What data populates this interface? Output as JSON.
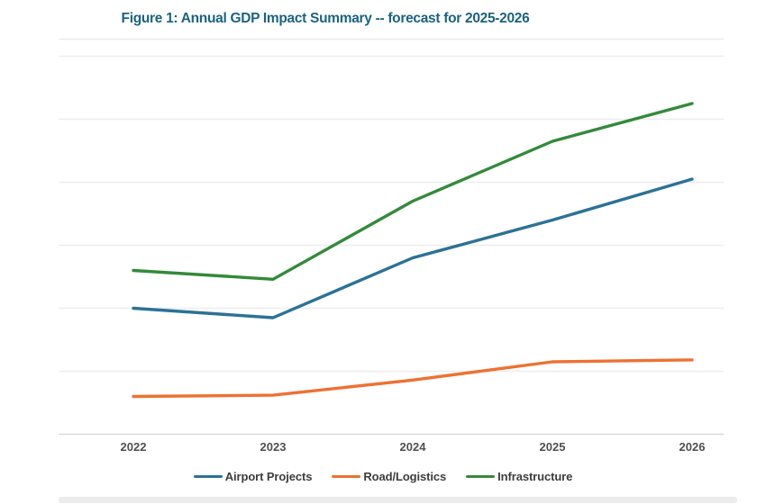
{
  "chart_data": {
    "type": "line",
    "title": "Figure 1: Annual GDP Impact Summary -- forecast for 2025-2026",
    "title_color": "#1b6380",
    "categories": [
      "2022",
      "2023",
      "2024",
      "2025",
      "2026"
    ],
    "series": [
      {
        "name": "Airport Projects",
        "color": "#2b7296",
        "values": [
          2.0,
          1.85,
          2.8,
          3.4,
          4.05
        ]
      },
      {
        "name": "Road/Logistics",
        "color": "#ed7132",
        "values": [
          0.6,
          0.62,
          0.86,
          1.15,
          1.18
        ]
      },
      {
        "name": "Infrastructure",
        "color": "#338a3b",
        "values": [
          2.6,
          2.46,
          3.7,
          4.65,
          5.25
        ]
      }
    ],
    "xlabel": "",
    "ylabel": "",
    "ylim": [
      0,
      6.3
    ],
    "y_axis_labels_visible": false,
    "grid": true,
    "gridline_values": [
      1,
      2,
      3,
      4,
      5,
      6
    ],
    "legend_position": "bottom",
    "note": "No y-axis tick labels visible; values estimated in gridline units (1 unit per gridline, baseline = 0)."
  },
  "style": {
    "gridline_color": "#ededed",
    "axis_line_color": "#d8d8d8",
    "plot_top_border_color": "#ebebeb",
    "tick_label_color": "#4f4f4f",
    "legend_text_color": "#3d3d3d"
  }
}
